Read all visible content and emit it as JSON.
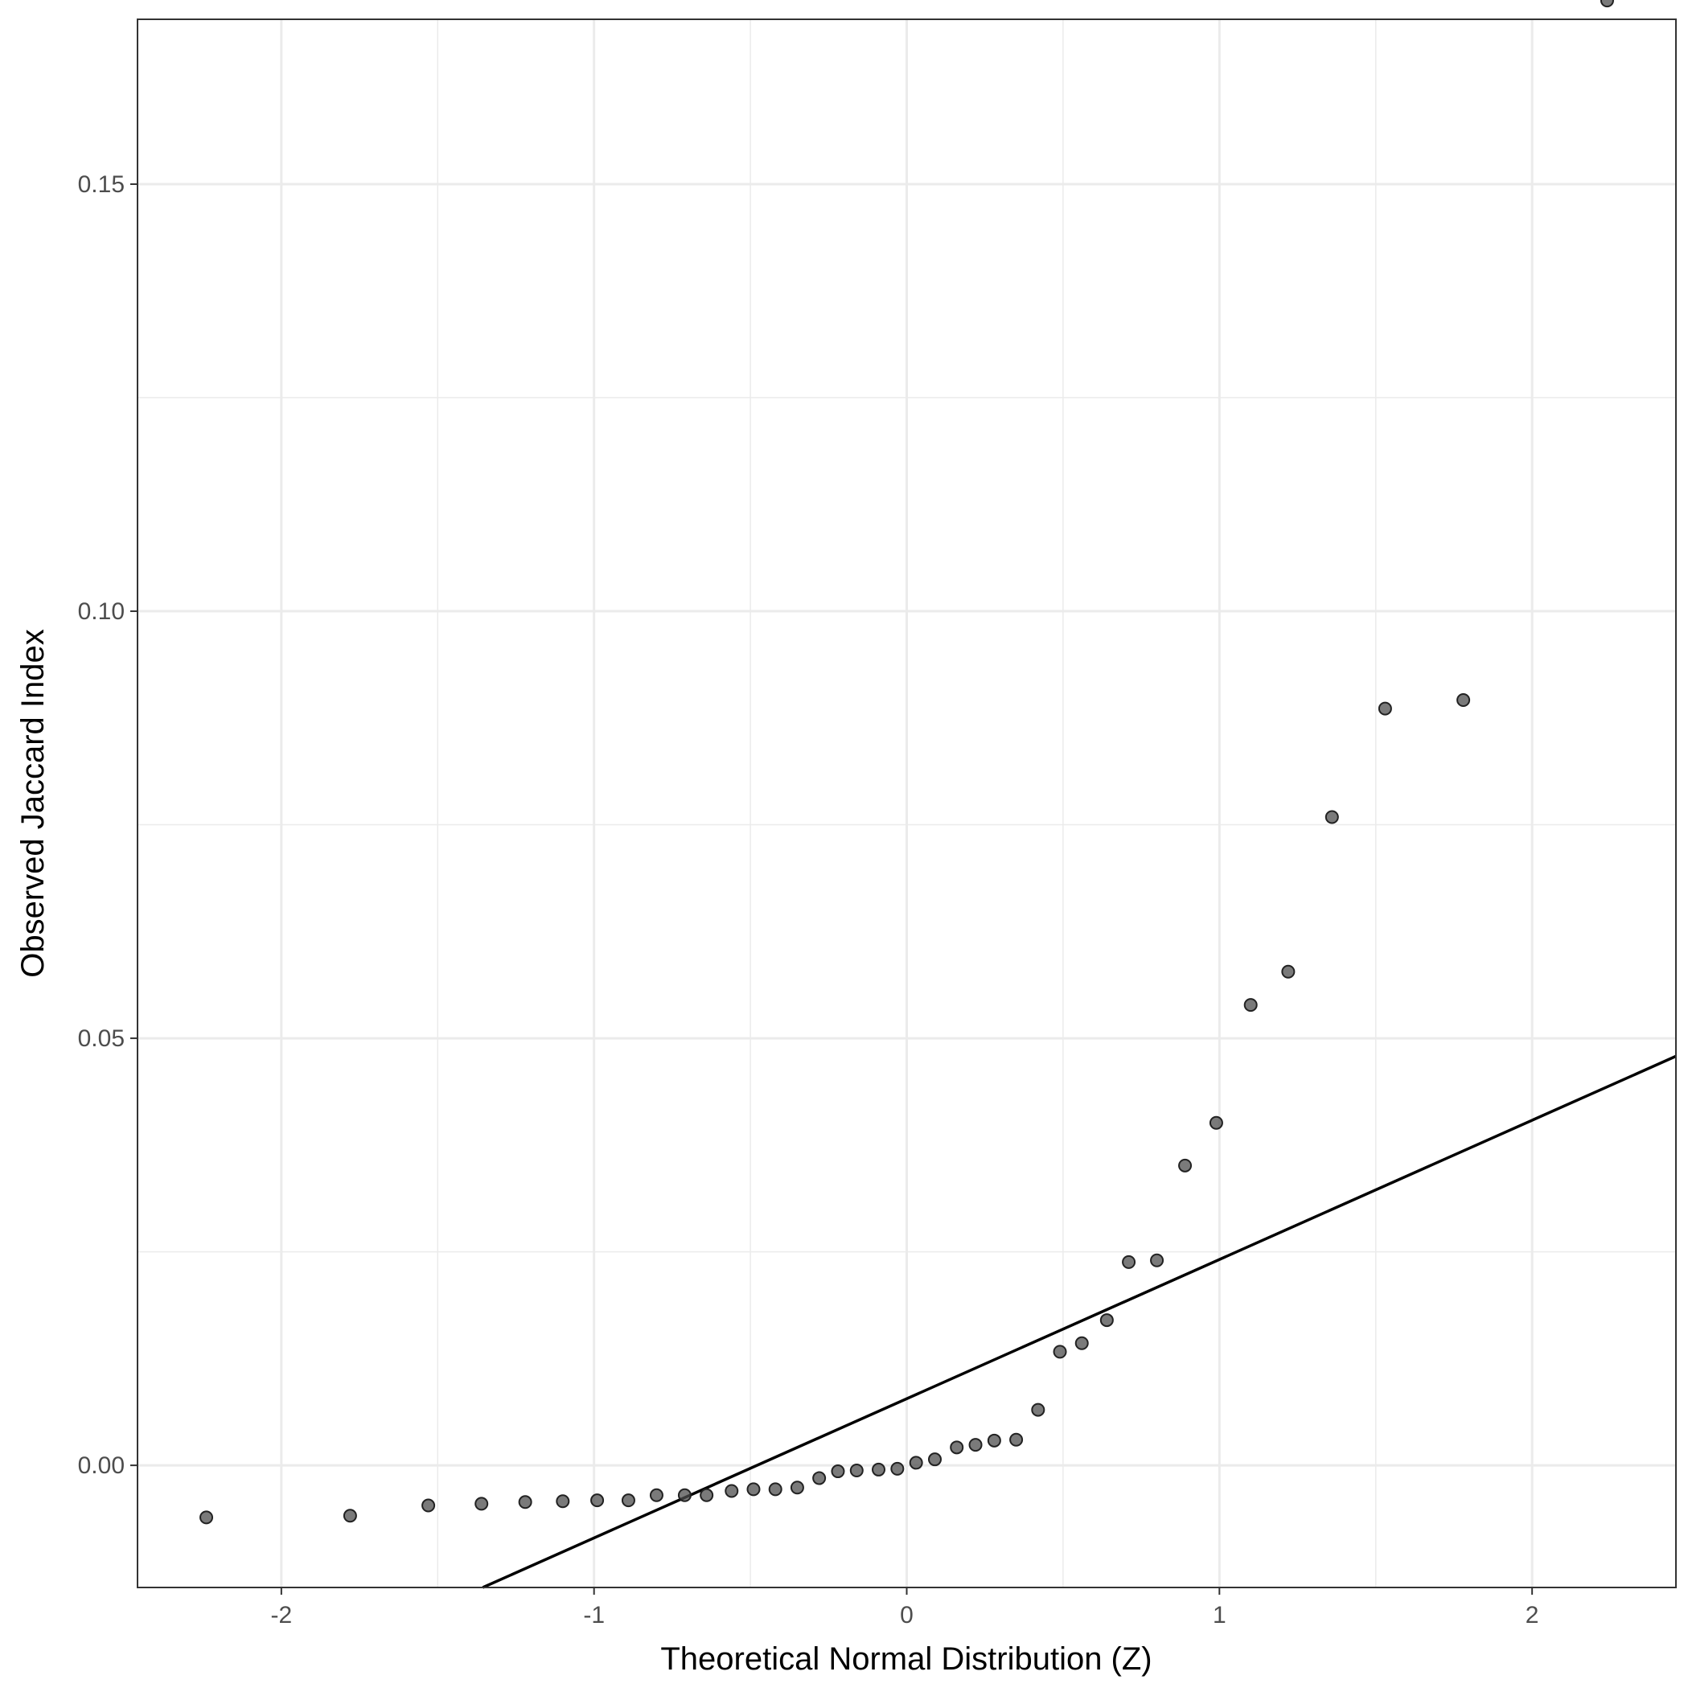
{
  "chart_data": {
    "type": "scatter",
    "title": "",
    "xlabel": "Theoretical Normal Distribution (Z)",
    "ylabel": "Observed Jaccard Index",
    "xlim": [
      -2.46,
      2.46
    ],
    "ylim": [
      -0.0143,
      0.1693
    ],
    "x_ticks": [
      -2,
      -1,
      0,
      1,
      2
    ],
    "x_tick_labels": [
      "-2",
      "-1",
      "0",
      "1",
      "2"
    ],
    "y_ticks": [
      0.0,
      0.05,
      0.1,
      0.15
    ],
    "y_tick_labels": [
      "0.00",
      "0.05",
      "0.10",
      "0.15"
    ],
    "grid": true,
    "series": [
      {
        "x": [
          -2.24,
          -1.78,
          -1.53,
          -1.36,
          -1.22,
          -1.1,
          -0.99,
          -0.89,
          -0.8,
          -0.71,
          -0.64,
          -0.56,
          -0.49,
          -0.42,
          -0.35,
          -0.28,
          -0.22,
          -0.16,
          -0.09,
          -0.03,
          0.03,
          0.09,
          0.16,
          0.22,
          0.28,
          0.35,
          0.42,
          0.49,
          0.56,
          0.64,
          0.71,
          0.8,
          0.89,
          0.99,
          1.1,
          1.22,
          1.36,
          1.53,
          1.78,
          2.24
        ],
        "y": [
          -0.0061,
          -0.0059,
          -0.0047,
          -0.0045,
          -0.0043,
          -0.0042,
          -0.0041,
          -0.0041,
          -0.0035,
          -0.0035,
          -0.0035,
          -0.003,
          -0.0028,
          -0.0028,
          -0.0026,
          -0.0015,
          -0.0007,
          -0.0006,
          -0.0005,
          -0.0004,
          0.0003,
          0.0007,
          0.0021,
          0.0024,
          0.0029,
          0.003,
          0.0065,
          0.0133,
          0.0143,
          0.017,
          0.0238,
          0.024,
          0.0351,
          0.0401,
          0.0539,
          0.0578,
          0.0759,
          0.0886,
          0.0896,
          0.1715
        ],
        "color": "#4d4d4d"
      }
    ],
    "reference_line": {
      "intercept": 0.0078,
      "slope": 0.0163,
      "color": "#000000"
    }
  }
}
